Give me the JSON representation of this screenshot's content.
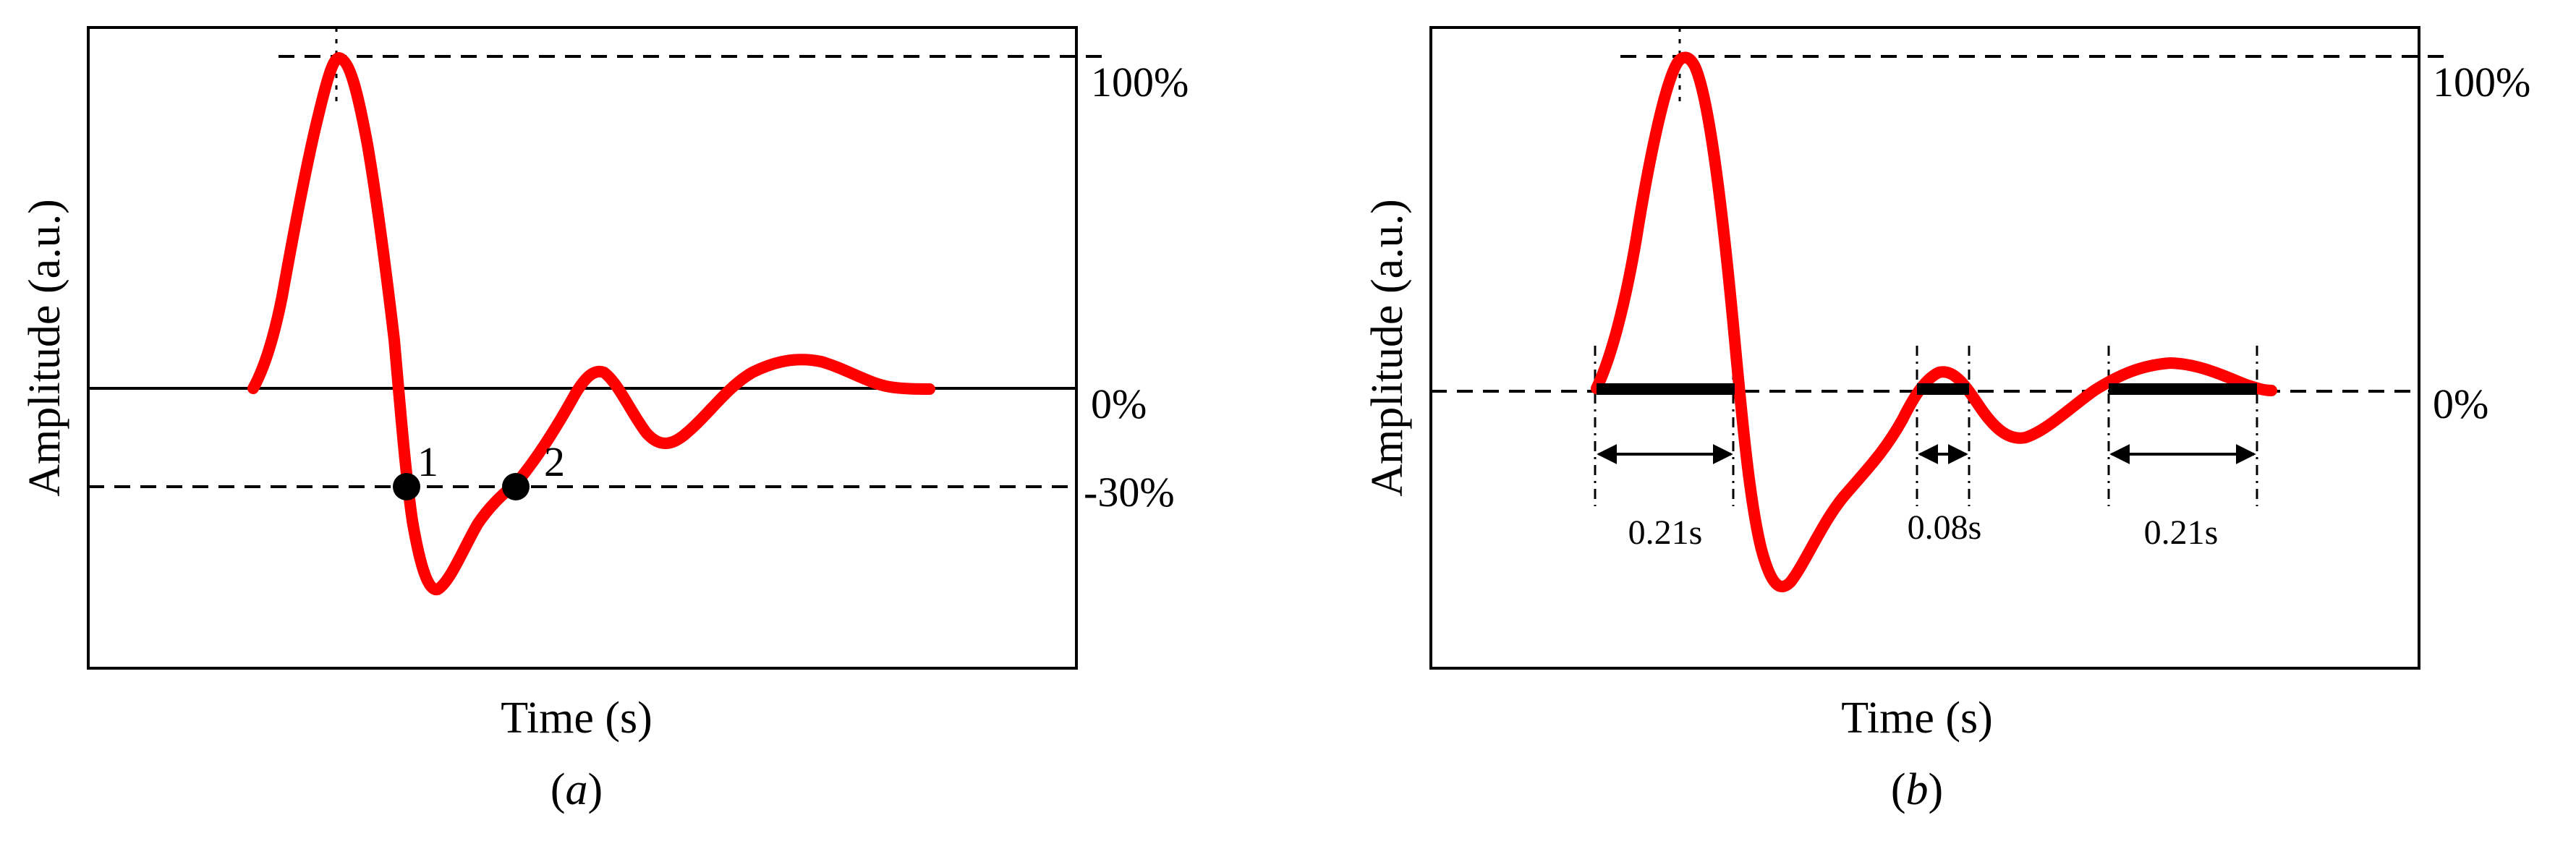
{
  "colors": {
    "signal": "#ff0000",
    "ink": "#000000",
    "background": "#ffffff"
  },
  "panels": [
    {
      "caption_text": "a",
      "xlabel": "Time (s)",
      "ylabel": "Amplitude (a.u.)",
      "levels": [
        {
          "label": "100%",
          "value": 100,
          "line": "dashed"
        },
        {
          "label": "0%",
          "value": 0,
          "line": "solid"
        },
        {
          "label": "-30%",
          "value": -30,
          "line": "dashed"
        }
      ],
      "points": [
        {
          "label": "1",
          "level": -30
        },
        {
          "label": "2",
          "level": -30
        }
      ]
    },
    {
      "caption_text": "b",
      "xlabel": "Time (s)",
      "ylabel": "Amplitude (a.u.)",
      "levels": [
        {
          "label": "100%",
          "value": 100,
          "line": "dashed"
        },
        {
          "label": "0%",
          "value": 0,
          "line": "dashed"
        }
      ],
      "intervals": [
        {
          "label": "0.21s",
          "duration_s": 0.21
        },
        {
          "label": "0.08s",
          "duration_s": 0.08
        },
        {
          "label": "0.21s",
          "duration_s": 0.21
        }
      ]
    }
  ]
}
